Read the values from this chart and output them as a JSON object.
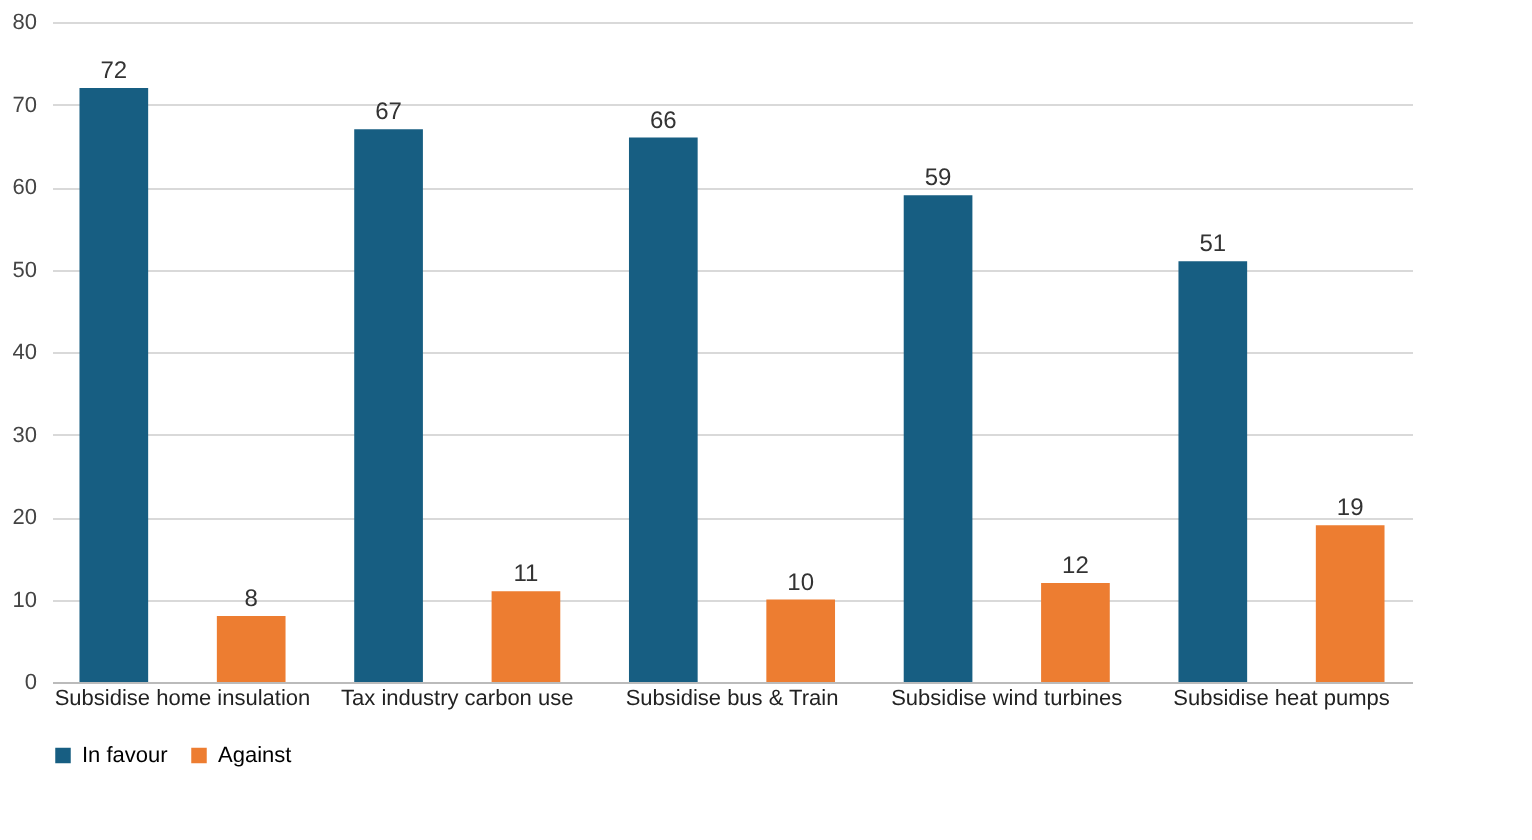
{
  "chart_data": {
    "type": "bar",
    "categories": [
      "Subsidise home insulation",
      "Tax industry carbon use",
      "Subsidise bus & Train",
      "Subsidise wind turbines",
      "Subsidise heat pumps"
    ],
    "series": [
      {
        "name": "In favour",
        "color": "#175e82",
        "values": [
          72,
          67,
          66,
          59,
          51
        ]
      },
      {
        "name": "Against",
        "color": "#ed7d31",
        "values": [
          8,
          11,
          10,
          12,
          19
        ]
      }
    ],
    "ylim": [
      0,
      80
    ],
    "yticks": [
      0,
      10,
      20,
      30,
      40,
      50,
      60,
      70,
      80
    ],
    "grid": "y",
    "legend": "bottom",
    "data_labels": true
  }
}
